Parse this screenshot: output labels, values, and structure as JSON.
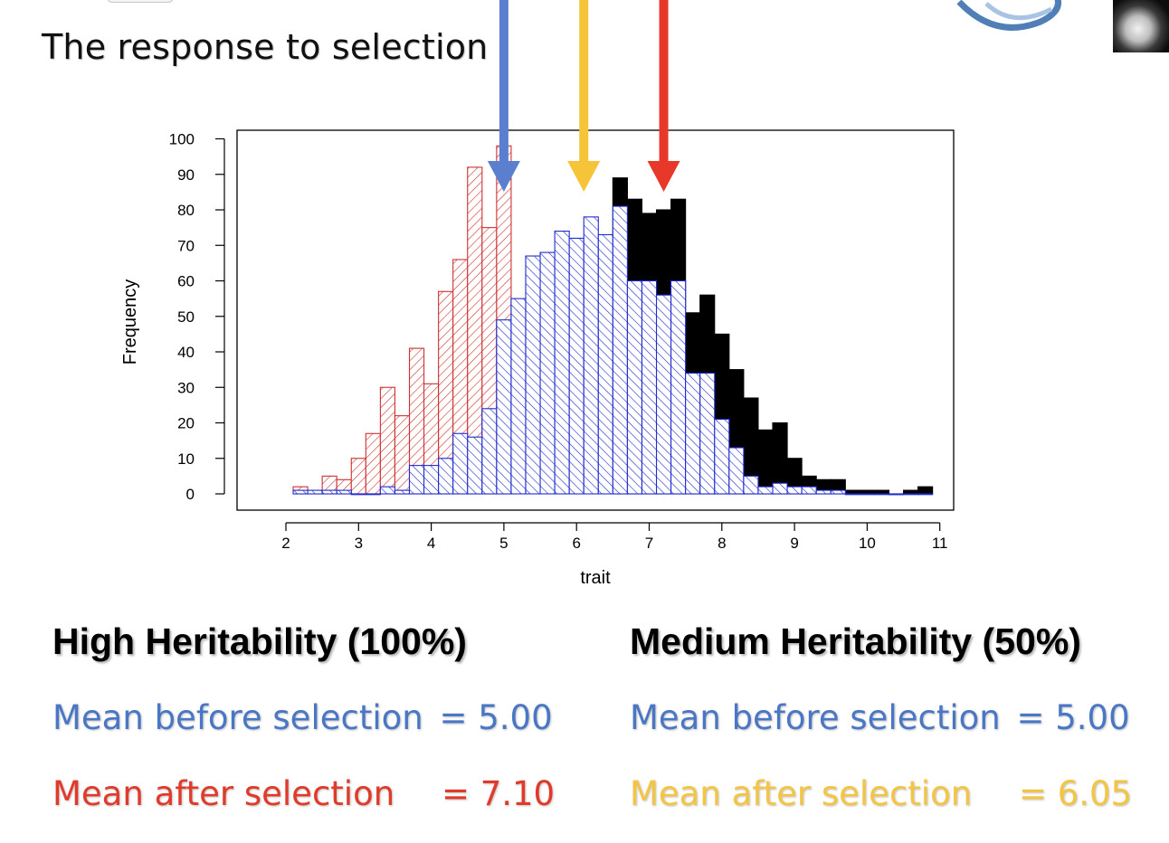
{
  "slide": {
    "title": "The response to selection"
  },
  "colors": {
    "before": "#4a76c6",
    "after_high": "#e03a2a",
    "after_medium": "#f4c542",
    "blue_hist": "#1f2bd0",
    "red_hist": "#d03030",
    "black_hist": "#000000"
  },
  "arrows": [
    {
      "color": "#5b7fcf",
      "x_value": 5.0
    },
    {
      "color": "#f5c438",
      "x_value": 6.1
    },
    {
      "color": "#e8382a",
      "x_value": 7.2
    }
  ],
  "chart_data": {
    "type": "bar",
    "xlabel": "trait",
    "ylabel": "Frequency",
    "xlim": [
      1.65,
      11.5
    ],
    "ylim": [
      0,
      100
    ],
    "xticks": [
      2,
      3,
      4,
      5,
      6,
      7,
      8,
      9,
      10,
      11
    ],
    "yticks": [
      0,
      10,
      20,
      30,
      40,
      50,
      60,
      70,
      80,
      90,
      100
    ],
    "bin_width": 0.2,
    "series": [
      {
        "x_start": 2.1,
        "values": [
          2,
          1,
          5,
          4,
          10,
          17,
          30,
          22,
          41,
          31,
          57,
          66,
          92,
          75,
          98
        ],
        "style": "red-hatch"
      },
      {
        "x_start": 2.1,
        "values": [
          1,
          1,
          1,
          1,
          0,
          0,
          2,
          1,
          8,
          8,
          10,
          17,
          16,
          24,
          49,
          55,
          67,
          68,
          74,
          72,
          78,
          73,
          81,
          60,
          60,
          56,
          60,
          34,
          34,
          21,
          13,
          5,
          2,
          3,
          2,
          2,
          1,
          1,
          0,
          0,
          0,
          0,
          0,
          0
        ],
        "style": "blue-hatch"
      },
      {
        "x_start": 6.5,
        "values": [
          89,
          83,
          79,
          80,
          83,
          51,
          56,
          45,
          35,
          27,
          18,
          20,
          10,
          5,
          4,
          4,
          1,
          1,
          1,
          0,
          1,
          2
        ],
        "style": "black"
      }
    ]
  },
  "panels": {
    "high": {
      "heading": "High Heritability (100%)",
      "before_label": "Mean before selection",
      "before_value": "= 5.00",
      "after_label": "Mean after selection",
      "after_value": "= 7.10"
    },
    "medium": {
      "heading": "Medium Heritability (50%)",
      "before_label": "Mean before selection",
      "before_value": "= 5.00",
      "after_label": "Mean after selection",
      "after_value": "= 6.05"
    }
  }
}
